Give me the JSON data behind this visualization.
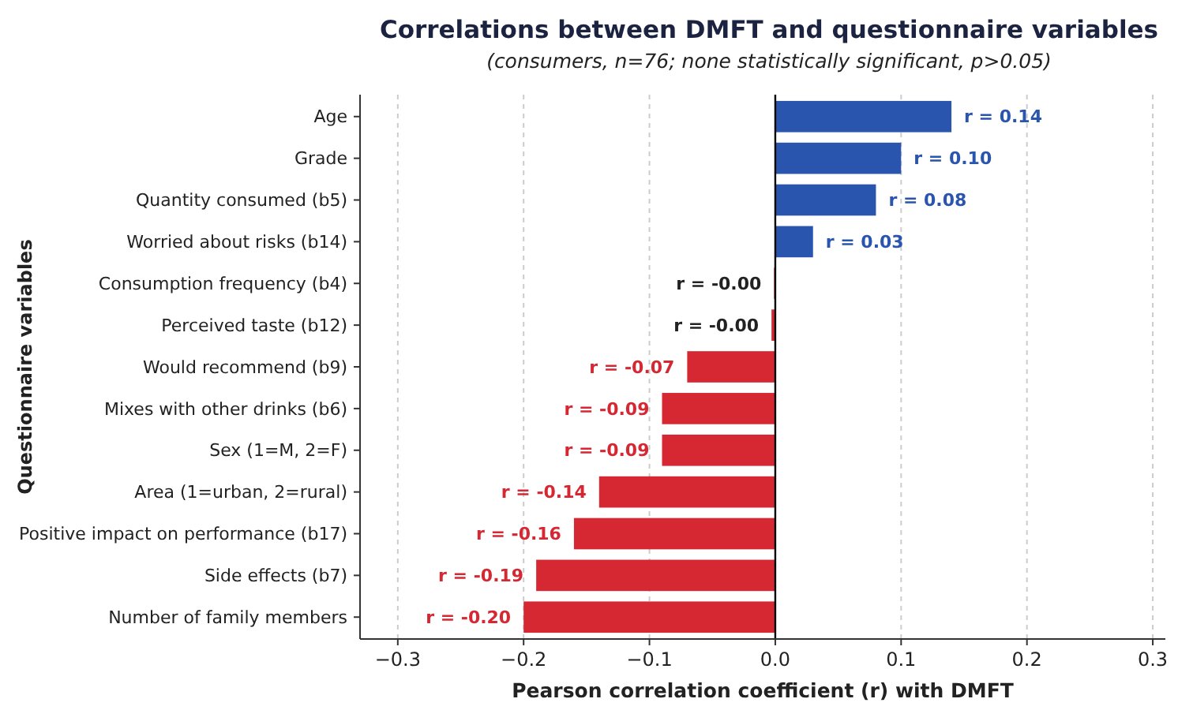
{
  "chart_data": {
    "type": "bar",
    "orientation": "horizontal",
    "title": "Correlations between DMFT and questionnaire variables",
    "subtitle": "(consumers, n=76; none statistically significant, p>0.05)",
    "xlabel": "Pearson correlation coefficient (r) with DMFT",
    "ylabel": "Questionnaire variables",
    "categories": [
      "Age",
      "Grade",
      "Quantity consumed (b5)",
      "Worried about risks (b14)",
      "Consumption frequency (b4)",
      "Perceived taste (b12)",
      "Would recommend (b9)",
      "Mixes with other drinks (b6)",
      "Sex (1=M, 2=F)",
      "Area (1=urban, 2=rural)",
      "Positive impact on performance (b17)",
      "Side effects (b7)",
      "Number of family members"
    ],
    "values": [
      0.14,
      0.1,
      0.08,
      0.03,
      -0.001,
      -0.003,
      -0.07,
      -0.09,
      -0.09,
      -0.14,
      -0.16,
      -0.19,
      -0.2
    ],
    "colors": [
      "#2a55ae",
      "#2a55ae",
      "#2a55ae",
      "#2a55ae",
      "#d62833",
      "#d62833",
      "#d62833",
      "#d62833",
      "#d62833",
      "#d62833",
      "#d62833",
      "#d62833",
      "#d62833"
    ],
    "value_labels": [
      "r = 0.14",
      "r = 0.10",
      "r = 0.08",
      "r = 0.03",
      "r = -0.00",
      "r = -0.00",
      "r = -0.07",
      "r = -0.09",
      "r = -0.09",
      "r = -0.14",
      "r = -0.16",
      "r = -0.19",
      "r = -0.20"
    ],
    "xlim": [
      -0.33,
      0.31
    ],
    "xticks": [
      {
        "value": -0.3,
        "label": "−0.3"
      },
      {
        "value": -0.2,
        "label": "−0.2"
      },
      {
        "value": -0.1,
        "label": "−0.1"
      },
      {
        "value": 0,
        "label": "0.0"
      },
      {
        "value": 0.1,
        "label": "0.1"
      },
      {
        "value": 0.2,
        "label": "0.2"
      },
      {
        "value": 0.3,
        "label": "0.3"
      }
    ],
    "grid": "x",
    "ref_lines": [
      {
        "axis": "x",
        "value": 0,
        "color": "#000000"
      }
    ]
  }
}
